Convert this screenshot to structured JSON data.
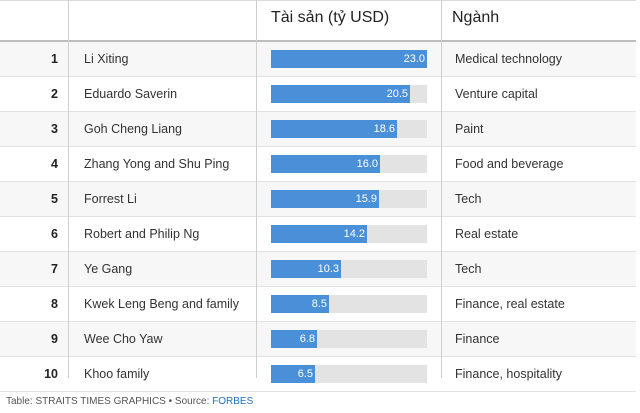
{
  "header": {
    "wealth": "Tài sản (tỷ USD)",
    "sector": "Ngành"
  },
  "footer": {
    "prefix": "Table: STRAITS TIMES GRAPHICS • Source: ",
    "source": "FORBES"
  },
  "chart_data": {
    "type": "table",
    "xlim": [
      0,
      23.0
    ],
    "rows": [
      {
        "rank": "1",
        "name": "Li Xiting",
        "value": 23.0,
        "label": "23.0",
        "sector": "Medical technology"
      },
      {
        "rank": "2",
        "name": "Eduardo Saverin",
        "value": 20.5,
        "label": "20.5",
        "sector": "Venture capital"
      },
      {
        "rank": "3",
        "name": "Goh Cheng Liang",
        "value": 18.6,
        "label": "18.6",
        "sector": "Paint"
      },
      {
        "rank": "4",
        "name": "Zhang Yong and Shu Ping",
        "value": 16.0,
        "label": "16.0",
        "sector": "Food and beverage"
      },
      {
        "rank": "5",
        "name": "Forrest Li",
        "value": 15.9,
        "label": "15.9",
        "sector": "Tech"
      },
      {
        "rank": "6",
        "name": "Robert and Philip Ng",
        "value": 14.2,
        "label": "14.2",
        "sector": "Real estate"
      },
      {
        "rank": "7",
        "name": "Ye Gang",
        "value": 10.3,
        "label": "10.3",
        "sector": "Tech"
      },
      {
        "rank": "8",
        "name": "Kwek Leng Beng and family",
        "value": 8.5,
        "label": "8.5",
        "sector": "Finance, real estate"
      },
      {
        "rank": "9",
        "name": "Wee Cho Yaw",
        "value": 6.8,
        "label": "6.8",
        "sector": "Finance"
      },
      {
        "rank": "10",
        "name": "Khoo family",
        "value": 6.5,
        "label": "6.5",
        "sector": "Finance, hospitality"
      }
    ]
  }
}
